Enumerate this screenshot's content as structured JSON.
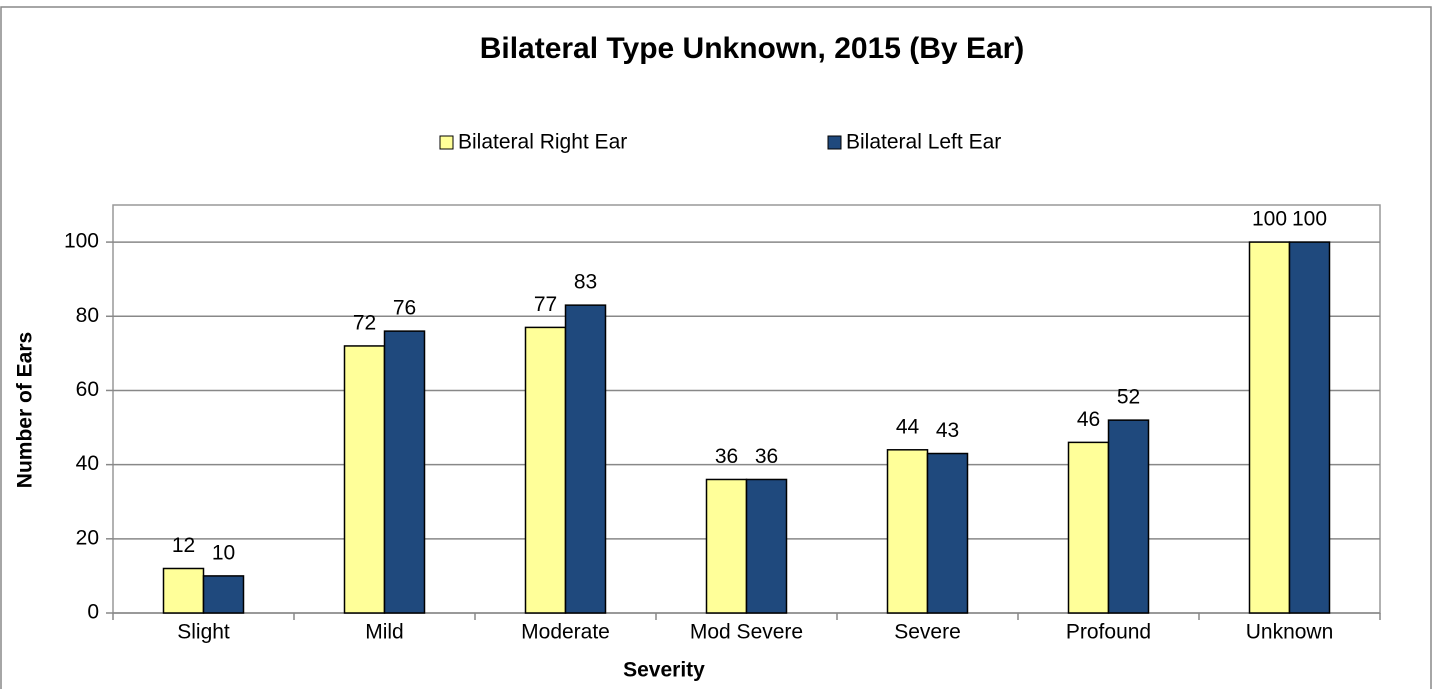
{
  "chart_data": {
    "type": "bar",
    "title": "Bilateral Type Unknown, 2015 (By Ear)",
    "categories": [
      "Slight",
      "Mild",
      "Moderate",
      "Mod Severe",
      "Severe",
      "Profound",
      "Unknown"
    ],
    "series": [
      {
        "name": "Bilateral Right Ear",
        "color": "#ffff99",
        "values": [
          12,
          72,
          77,
          36,
          44,
          46,
          100
        ]
      },
      {
        "name": "Bilateral Left Ear",
        "color": "#1f497d",
        "values": [
          10,
          76,
          83,
          36,
          43,
          52,
          100
        ]
      }
    ],
    "xlabel": "Severity",
    "ylabel": "Number of Ears",
    "ylim": [
      0,
      110
    ],
    "yticks": [
      0,
      20,
      40,
      60,
      80,
      100
    ],
    "grid": true,
    "legend": "top"
  }
}
